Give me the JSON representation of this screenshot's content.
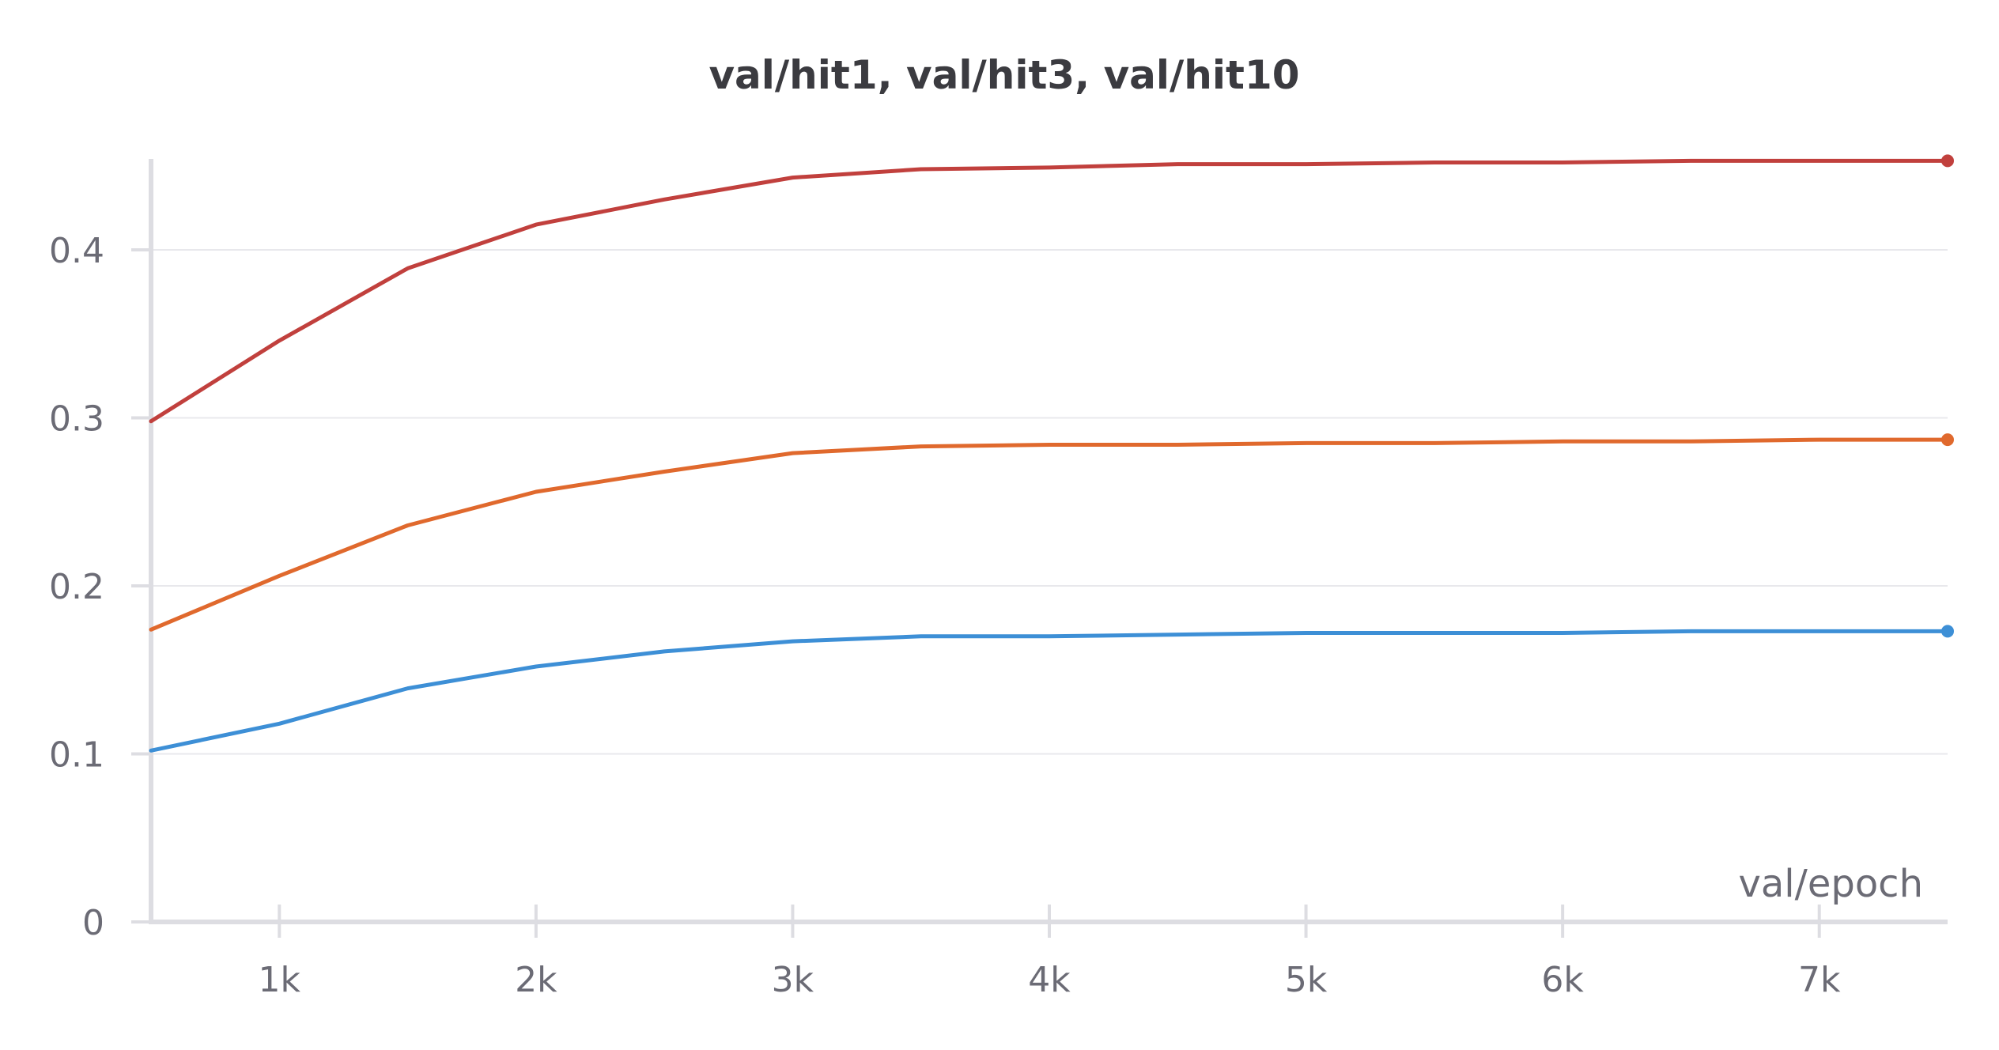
{
  "chart_data": {
    "type": "line",
    "title": "val/hit1, val/hit3, val/hit10",
    "xlabel": "val/epoch",
    "ylabel": "",
    "xlim": [
      500,
      7500
    ],
    "ylim": [
      0,
      0.45
    ],
    "xticks": [
      1000,
      2000,
      3000,
      4000,
      5000,
      6000,
      7000
    ],
    "xtick_labels": [
      "1k",
      "2k",
      "3k",
      "4k",
      "5k",
      "6k",
      "7k"
    ],
    "yticks": [
      0,
      0.1,
      0.2,
      0.3,
      0.4
    ],
    "ytick_labels": [
      "0",
      "0.1",
      "0.2",
      "0.3",
      "0.4"
    ],
    "grid": true,
    "legend": "none",
    "x": [
      500,
      1000,
      1500,
      2000,
      2500,
      3000,
      3500,
      4000,
      4500,
      5000,
      5500,
      6000,
      6500,
      7000,
      7500
    ],
    "series": [
      {
        "color": "#c1403d",
        "values": [
          0.298,
          0.346,
          0.389,
          0.415,
          0.43,
          0.443,
          0.448,
          0.449,
          0.451,
          0.451,
          0.452,
          0.452,
          0.453,
          0.453,
          0.453
        ]
      },
      {
        "color": "#e0692d",
        "values": [
          0.174,
          0.206,
          0.236,
          0.256,
          0.268,
          0.279,
          0.283,
          0.284,
          0.284,
          0.285,
          0.285,
          0.286,
          0.286,
          0.287,
          0.287
        ]
      },
      {
        "color": "#3d8fd6",
        "values": [
          0.102,
          0.118,
          0.139,
          0.152,
          0.161,
          0.167,
          0.17,
          0.17,
          0.171,
          0.172,
          0.172,
          0.172,
          0.173,
          0.173,
          0.173
        ]
      }
    ]
  }
}
